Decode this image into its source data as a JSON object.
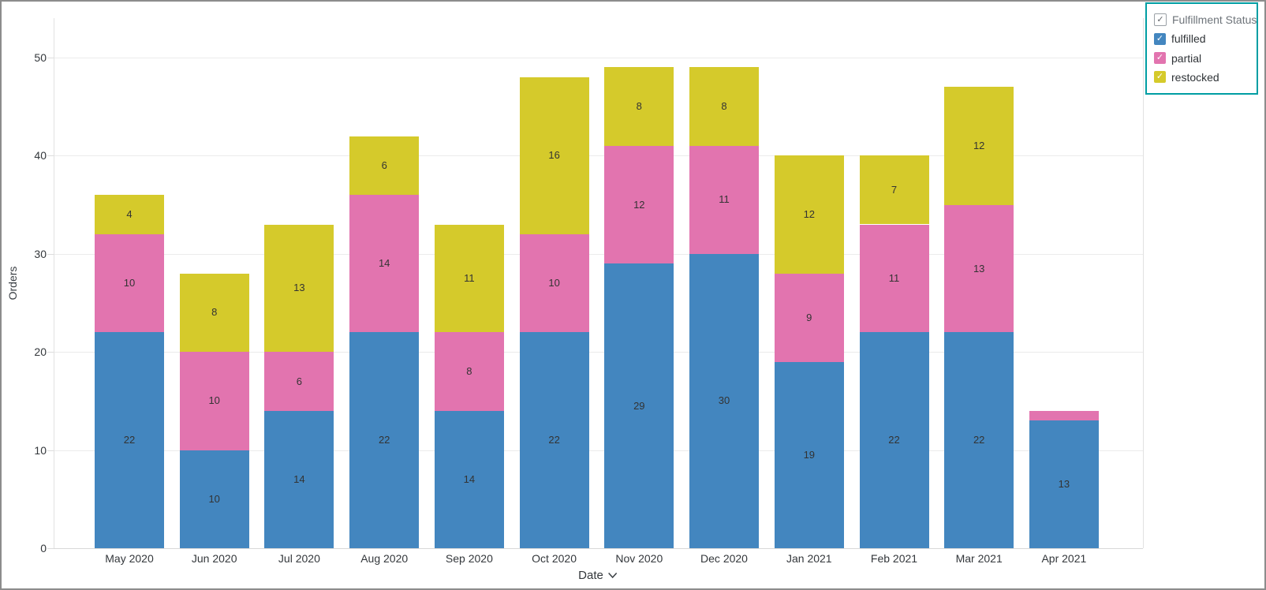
{
  "frame": {
    "border_color": "#8C8C8C",
    "background": "#FFFFFF"
  },
  "chart_data": {
    "type": "bar",
    "stacked": true,
    "title": "",
    "xlabel": "Date",
    "ylabel": "Orders",
    "ylim": [
      0,
      54
    ],
    "yticks": [
      0,
      10,
      20,
      30,
      40,
      50
    ],
    "grid": true,
    "legend_position": "top-right",
    "bar_value_labels": true,
    "categories": [
      "May 2020",
      "Jun 2020",
      "Jul 2020",
      "Aug 2020",
      "Sep 2020",
      "Oct 2020",
      "Nov 2020",
      "Dec 2020",
      "Jan 2021",
      "Feb 2021",
      "Mar 2021",
      "Apr 2021"
    ],
    "series": [
      {
        "name": "fulfilled",
        "color": "#4386BF",
        "values": [
          22,
          10,
          14,
          22,
          14,
          22,
          29,
          30,
          19,
          22,
          22,
          13
        ]
      },
      {
        "name": "partial",
        "color": "#E274AF",
        "values": [
          10,
          10,
          6,
          14,
          8,
          10,
          12,
          11,
          9,
          11,
          13,
          1
        ]
      },
      {
        "name": "restocked",
        "color": "#D5CA2B",
        "values": [
          4,
          8,
          13,
          6,
          11,
          16,
          8,
          8,
          12,
          7,
          12,
          0
        ]
      }
    ]
  },
  "legend": {
    "title": "Fulfillment Status",
    "border_color": "#009EA3",
    "checkmark": "✓",
    "all_checked": true
  }
}
